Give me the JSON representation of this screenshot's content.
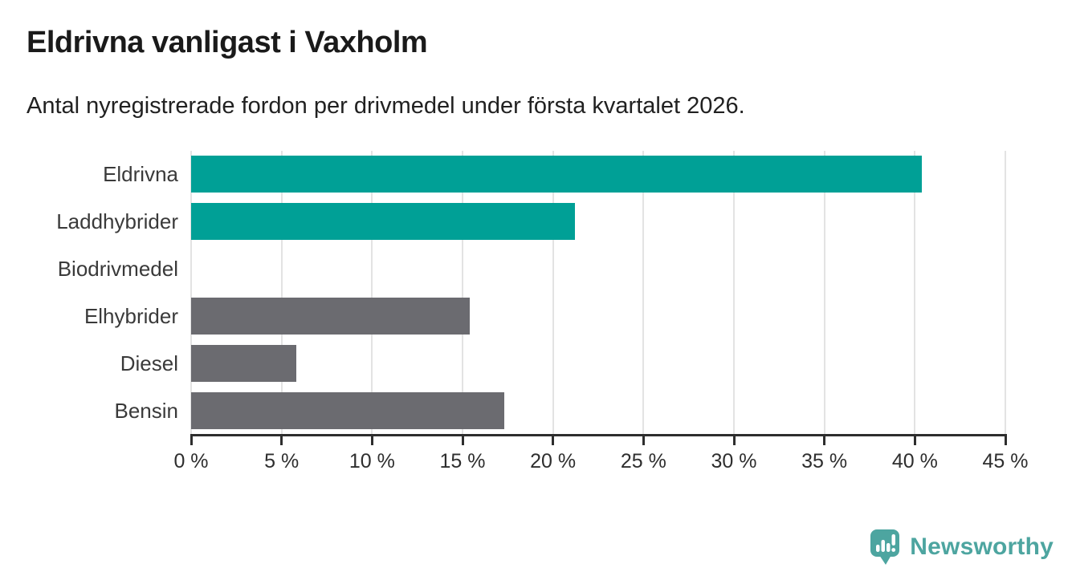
{
  "chart_data": {
    "type": "bar",
    "orientation": "horizontal",
    "title": "Eldrivna vanligast i Vaxholm",
    "subtitle": "Antal nyregistrerade fordon per drivmedel under första kvartalet 2026.",
    "categories": [
      "Eldrivna",
      "Laddhybrider",
      "Biodrivmedel",
      "Elhybrider",
      "Diesel",
      "Bensin"
    ],
    "values": [
      40.4,
      21.2,
      0,
      15.4,
      5.8,
      17.3
    ],
    "value_unit": "%",
    "xlim": [
      0,
      45
    ],
    "xtick_values": [
      0,
      5,
      10,
      15,
      20,
      25,
      30,
      35,
      40,
      45
    ],
    "xtick_labels": [
      "0 %",
      "5 %",
      "10 %",
      "15 %",
      "20 %",
      "25 %",
      "30 %",
      "35 %",
      "40 %",
      "45 %"
    ],
    "bar_colors": [
      "#00a096",
      "#00a096",
      "#6b6b70",
      "#6b6b70",
      "#6b6b70",
      "#6b6b70"
    ],
    "xlabel": "",
    "ylabel": "",
    "grid": "vertical",
    "legend": "none"
  },
  "colors": {
    "highlight_teal": "#00a096",
    "neutral_gray": "#6b6b70",
    "gridline": "#e3e3e3",
    "axis": "#2e2e2e",
    "logo_teal": "#4da5a0"
  },
  "footer": {
    "brand": "Newsworthy"
  },
  "icons": {
    "logo": "newsworthy-speech-bubble-bar-chart-icon"
  }
}
